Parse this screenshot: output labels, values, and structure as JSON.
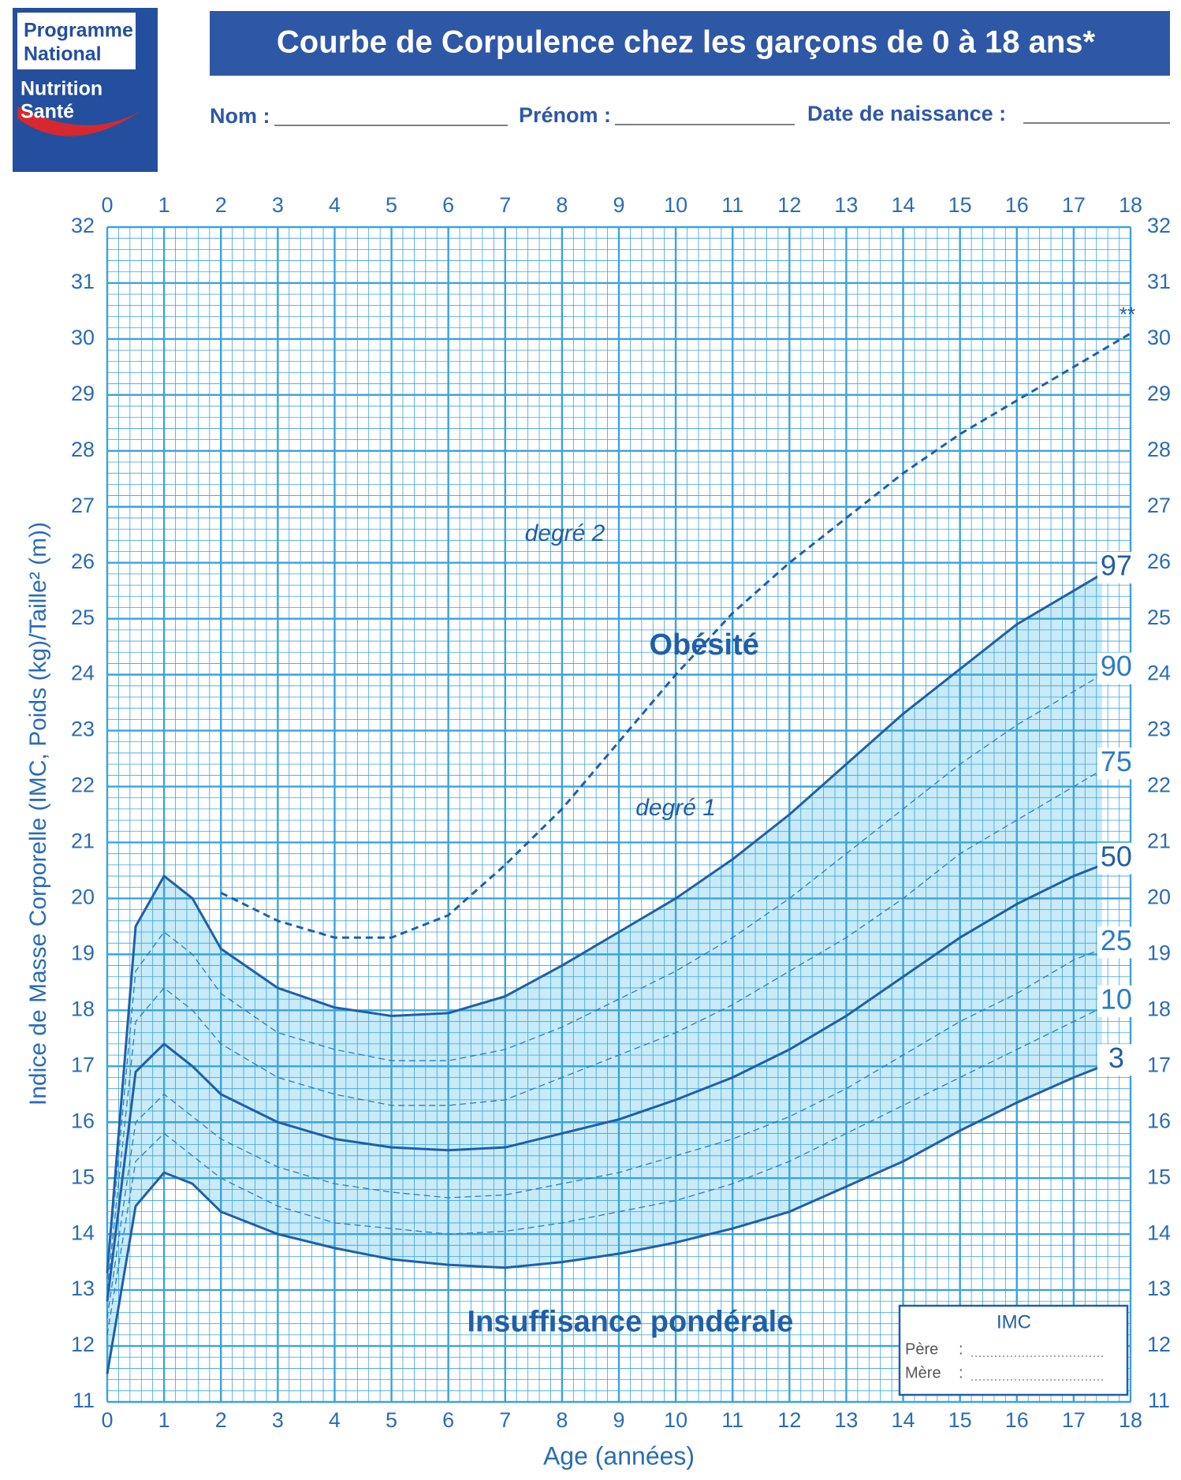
{
  "header": {
    "logo": [
      "Programme",
      "National",
      "Nutrition",
      "Santé"
    ]
  },
  "form": [
    "Nom :",
    "Prénom :",
    "Date de naissance :"
  ],
  "imc_box": {
    "title": "IMC",
    "rows": [
      "Père",
      "Mère"
    ],
    "separator": ":"
  },
  "chart_data": {
    "type": "line",
    "title": "Courbe de Corpulence chez les garçons de 0 à 18 ans*",
    "xlabel": "Age (années)",
    "ylabel": "Indice de Masse Corporelle (IMC, Poids (kg)/Taille² (m))",
    "annotations": [
      "degré 2",
      "Obésité",
      "degré 1",
      "Insuffisance pondérale"
    ],
    "x": [
      0,
      0.5,
      1,
      1.5,
      2,
      3,
      4,
      5,
      6,
      7,
      8,
      9,
      10,
      11,
      12,
      13,
      14,
      15,
      16,
      17,
      17.5,
      18
    ],
    "xlim": [
      0,
      18
    ],
    "ylim": [
      11,
      32
    ],
    "xticks": [
      0,
      1,
      2,
      3,
      4,
      5,
      6,
      7,
      8,
      9,
      10,
      11,
      12,
      13,
      14,
      15,
      16,
      17,
      18
    ],
    "yticks": [
      11,
      12,
      13,
      14,
      15,
      16,
      17,
      18,
      19,
      20,
      21,
      22,
      23,
      24,
      25,
      26,
      27,
      28,
      29,
      30,
      31,
      32
    ],
    "grid": true,
    "minor_grid": true,
    "grid_color": "#3aa3dd",
    "band_color": "#c8ebf7",
    "series": [
      {
        "name": "97",
        "color": "#1f5fa8",
        "style": "solid",
        "values": [
          13.3,
          19.5,
          20.4,
          20.0,
          19.1,
          18.4,
          18.05,
          17.9,
          17.95,
          18.25,
          18.8,
          19.4,
          20.0,
          20.7,
          21.5,
          22.4,
          23.3,
          24.1,
          24.9,
          25.5,
          25.8,
          null
        ]
      },
      {
        "name": "90",
        "color": "#2a7cc4",
        "style": "thin-dashed",
        "values": [
          13.2,
          18.7,
          19.4,
          19.0,
          18.3,
          17.6,
          17.3,
          17.1,
          17.1,
          17.3,
          17.7,
          18.2,
          18.7,
          19.3,
          20.0,
          20.8,
          21.6,
          22.4,
          23.1,
          23.7,
          24.0,
          null
        ]
      },
      {
        "name": "75",
        "color": "#2a7cc4",
        "style": "thin-dashed",
        "values": [
          13.0,
          17.8,
          18.4,
          18.0,
          17.4,
          16.8,
          16.5,
          16.3,
          16.3,
          16.4,
          16.8,
          17.2,
          17.6,
          18.1,
          18.7,
          19.3,
          20.0,
          20.8,
          21.4,
          22.0,
          22.3,
          null
        ]
      },
      {
        "name": "50",
        "color": "#1f5fa8",
        "style": "solid",
        "values": [
          12.8,
          16.9,
          17.4,
          17.0,
          16.5,
          16.0,
          15.7,
          15.55,
          15.5,
          15.55,
          15.8,
          16.05,
          16.4,
          16.8,
          17.3,
          17.9,
          18.6,
          19.3,
          19.9,
          20.4,
          20.6,
          null
        ]
      },
      {
        "name": "25",
        "color": "#2a7cc4",
        "style": "thin-dashed",
        "values": [
          12.5,
          16.0,
          16.5,
          16.1,
          15.7,
          15.2,
          14.9,
          14.75,
          14.65,
          14.7,
          14.9,
          15.1,
          15.4,
          15.7,
          16.1,
          16.6,
          17.2,
          17.8,
          18.3,
          18.9,
          19.1,
          null
        ]
      },
      {
        "name": "10",
        "color": "#2a7cc4",
        "style": "thin-dashed",
        "values": [
          12.2,
          15.3,
          15.8,
          15.4,
          15.0,
          14.5,
          14.2,
          14.1,
          14.0,
          14.05,
          14.2,
          14.4,
          14.6,
          14.9,
          15.3,
          15.8,
          16.3,
          16.8,
          17.3,
          17.8,
          18.05,
          null
        ]
      },
      {
        "name": "3",
        "color": "#1f5fa8",
        "style": "solid",
        "values": [
          11.5,
          14.5,
          15.1,
          14.9,
          14.4,
          14.0,
          13.75,
          13.55,
          13.45,
          13.4,
          13.5,
          13.65,
          13.85,
          14.1,
          14.4,
          14.85,
          15.3,
          15.85,
          16.35,
          16.8,
          17.0,
          null
        ]
      },
      {
        "name": "**",
        "color": "#1f5fa8",
        "style": "dashed",
        "values": [
          null,
          null,
          null,
          null,
          20.1,
          19.6,
          19.3,
          19.3,
          19.7,
          20.6,
          21.6,
          22.8,
          24.0,
          25.1,
          26.0,
          26.8,
          27.6,
          28.3,
          28.9,
          29.5,
          29.8,
          30.1
        ]
      }
    ]
  }
}
